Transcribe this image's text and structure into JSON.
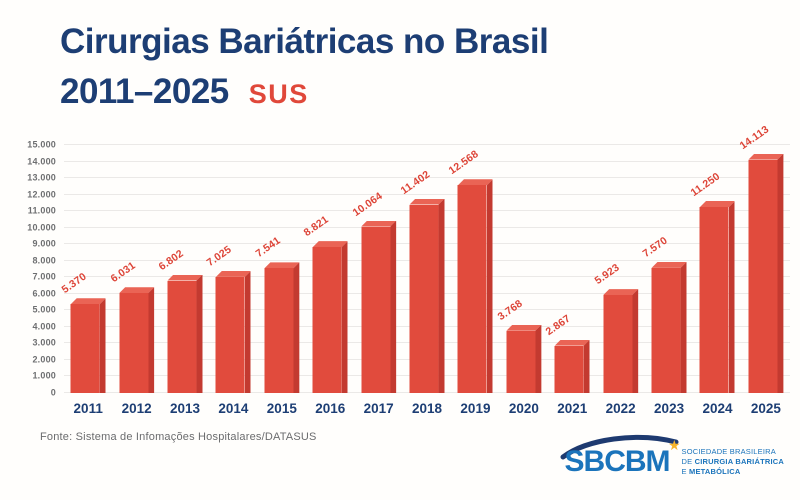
{
  "title": {
    "line1": "Cirurgias Bariátricas no Brasil",
    "line2": "2011–2025",
    "badge": "SUS"
  },
  "chart_data": {
    "type": "bar",
    "title": "Cirurgias Bariátricas no Brasil 2011–2025 SUS",
    "categories": [
      "2011",
      "2012",
      "2013",
      "2014",
      "2015",
      "2016",
      "2017",
      "2018",
      "2019",
      "2020",
      "2021",
      "2022",
      "2023",
      "2024",
      "2025"
    ],
    "values": [
      5370,
      6031,
      6802,
      7025,
      7541,
      8821,
      10064,
      11402,
      12568,
      3768,
      2867,
      5923,
      7570,
      11250,
      14113
    ],
    "value_labels": [
      "5.370",
      "6.031",
      "6.802",
      "7.025",
      "7.541",
      "8.821",
      "10.064",
      "11.402",
      "12.568",
      "3.768",
      "2.867",
      "5.923",
      "7.570",
      "11.250",
      "14.113"
    ],
    "xlabel": "",
    "ylabel": "",
    "ylim": [
      0,
      15000
    ],
    "y_tick_step": 1000,
    "y_tick_labels": [
      "0",
      "1.000",
      "2.000",
      "3.000",
      "4.000",
      "5.000",
      "6.000",
      "7.000",
      "8.000",
      "9.000",
      "10.000",
      "11.000",
      "12.000",
      "13.000",
      "14.000",
      "15.000"
    ],
    "grid": true,
    "legend": "none",
    "colors": {
      "bar_front": "#e14b3d",
      "bar_side": "#c33a30",
      "bar_top": "#ea6455",
      "value_label": "#dd4437",
      "axis_label": "#6e6f71",
      "category_label": "#1d3e74",
      "gridline": "#ebe9e7"
    }
  },
  "footer": {
    "source": "Fonte: Sistema de Infomações Hospitalares/DATASUS"
  },
  "logo": {
    "name": "SBCBM",
    "star_icon": "★",
    "tagline_line1": "SOCIEDADE BRASILEIRA",
    "tagline_line2_prefix": "DE ",
    "tagline_line2_bold": "CIRURGIA BARIÁTRICA",
    "tagline_line3_prefix": "E ",
    "tagline_line3_bold": "METABÓLICA"
  },
  "colors": {
    "title_navy": "#1d3e74",
    "accent_red": "#e0483a",
    "footer_gray": "#6b6c6e",
    "logo_blue": "#1b74bb",
    "logo_navy": "#1e3a70",
    "star_gold": "#f6b42c",
    "background": "#fffefc"
  }
}
